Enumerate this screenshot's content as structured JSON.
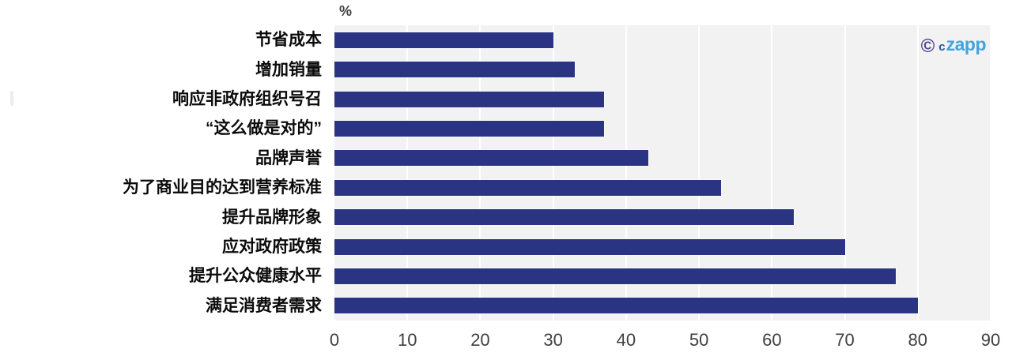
{
  "chart_data": {
    "type": "bar",
    "orientation": "horizontal",
    "title": "",
    "xlabel": "%",
    "ylabel": "",
    "categories": [
      "节省成本",
      "增加销量",
      "响应非政府组织号召",
      "“这么做是对的”",
      "品牌声誉",
      "为了商业目的达到营养标准",
      "提升品牌形象",
      "应对政府政策",
      "提升公众健康水平",
      "满足消费者需求"
    ],
    "values": [
      30,
      33,
      37,
      37,
      43,
      53,
      63,
      70,
      77,
      80
    ],
    "xlim": [
      0,
      90
    ],
    "x_ticks": [
      0,
      10,
      20,
      30,
      40,
      50,
      60,
      70,
      80,
      90
    ],
    "legend": "none",
    "grid": "vertical-white-gridlines",
    "colors": {
      "bar": "#2a3483",
      "plot_background": "#f2f2f2",
      "gridline": "#ffffff",
      "tick_text": "#3f3f3f",
      "category_text": "#0b0b0b"
    }
  },
  "axis": {
    "unit_label": "%"
  },
  "watermark": {
    "copyright_symbol": "©",
    "prefix": "c",
    "name": "zapp",
    "colors": {
      "symbol": "#4a4693",
      "prefix": "#2a4f9f",
      "name": "#3fa5df"
    }
  }
}
